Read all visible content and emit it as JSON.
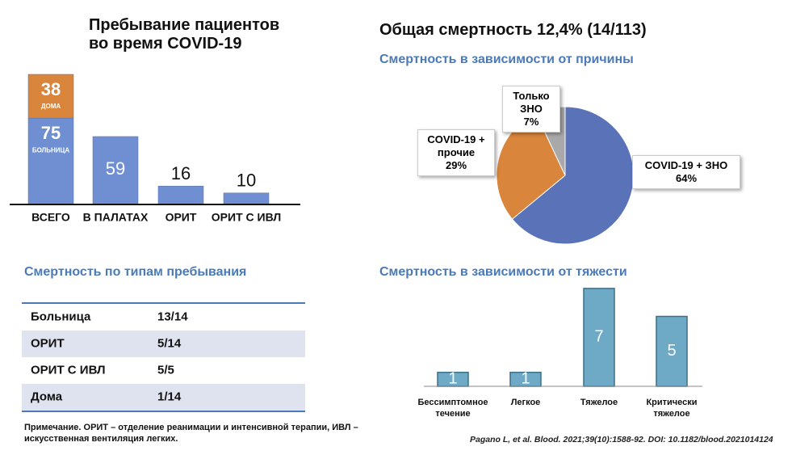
{
  "chart_data": [
    {
      "type": "stacked-bar",
      "title": "Пребывание пациентов во время COVID-19",
      "categories": [
        "ВСЕГО",
        "В ПАЛАТАХ",
        "ОРИТ",
        "ОРИТ С ИВЛ"
      ],
      "series": [
        {
          "name": "БОЛЬНИЦА",
          "color": "#6f8fd2",
          "values": [
            75,
            59,
            16,
            10
          ]
        },
        {
          "name": "ДОМА",
          "color": "#d9853b",
          "values": [
            38,
            null,
            null,
            null
          ]
        }
      ]
    },
    {
      "type": "pie",
      "title": "Общая смертность 12,4% (14/113)",
      "subtitle": "Смертность в зависимости от причины",
      "categories": [
        "COVID-19 + ЗНО",
        "COVID-19 + прочие",
        "Только ЗНО"
      ],
      "values": [
        64,
        29,
        7
      ],
      "value_labels": [
        "64%",
        "29%",
        "7%"
      ],
      "colors": [
        "#5a72b8",
        "#d9853b",
        "#a9a9a9"
      ]
    },
    {
      "type": "bar",
      "title": "Смертность в зависимости от тяжести",
      "categories": [
        "Бессимптомное течение",
        "Легкое",
        "Тяжелое",
        "Критически тяжелое"
      ],
      "values": [
        1,
        1,
        7,
        5
      ],
      "color": "#6ea9c6"
    }
  ],
  "table": {
    "title": "Смертность по типам пребывания",
    "rows": [
      [
        "Больница",
        "13/14"
      ],
      [
        "ОРИТ",
        "5/14"
      ],
      [
        "ОРИТ С ИВЛ",
        "5/5"
      ],
      [
        "Дома",
        "1/14"
      ]
    ]
  },
  "note": "Примечание. ОРИТ – отделение реанимации и интенсивной терапии, ИВЛ – искусственная вентиляция легких.",
  "citation": "Pagano L, et al. Blood. 2021;39(10):1588-92. DOI: 10.1182/blood.2021014124"
}
